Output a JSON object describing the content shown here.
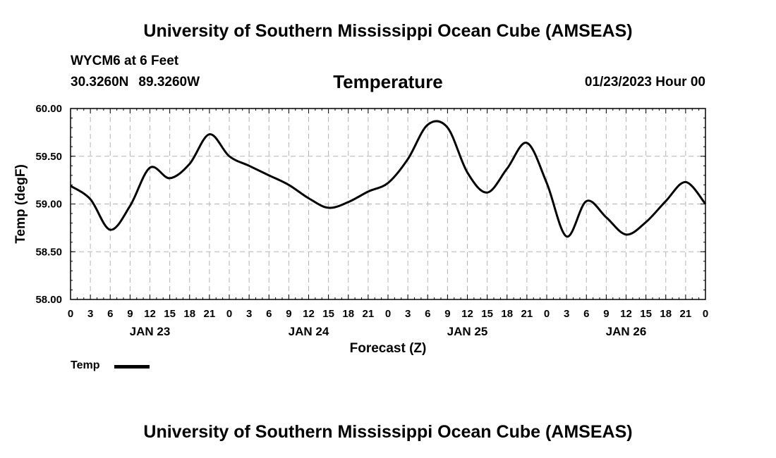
{
  "header": {
    "title": "University of Southern Mississippi Ocean Cube (AMSEAS)",
    "station": "WYCM6 at 6 Feet",
    "lat": "30.3260N",
    "lon": "89.3260W",
    "date": "01/23/2023 Hour 00"
  },
  "footer": {
    "title": "University of Southern Mississippi Ocean Cube (AMSEAS)"
  },
  "legend": {
    "label": "Temp",
    "color": "#000000"
  },
  "chart_data": {
    "type": "line",
    "title": "Temperature",
    "xlabel": "Forecast (Z)",
    "ylabel": "Temp (degF)",
    "ylim": [
      58.0,
      60.0
    ],
    "xlim": [
      0,
      96
    ],
    "y_ticks": [
      58.0,
      58.5,
      59.0,
      59.5,
      60.0
    ],
    "y_tick_labels": [
      "58.00",
      "58.50",
      "59.00",
      "59.50",
      "60.00"
    ],
    "x_ticks": [
      0,
      3,
      6,
      9,
      12,
      15,
      18,
      21,
      24,
      27,
      30,
      33,
      36,
      39,
      42,
      45,
      48,
      51,
      54,
      57,
      60,
      63,
      66,
      69,
      72,
      75,
      78,
      81,
      84,
      87,
      90,
      93,
      96
    ],
    "x_tick_labels": [
      "0",
      "3",
      "6",
      "9",
      "12",
      "15",
      "18",
      "21",
      "0",
      "3",
      "6",
      "9",
      "12",
      "15",
      "18",
      "21",
      "0",
      "3",
      "6",
      "9",
      "12",
      "15",
      "18",
      "21",
      "0",
      "3",
      "6",
      "9",
      "12",
      "15",
      "18",
      "21",
      "0"
    ],
    "day_labels": [
      {
        "label": "JAN 23",
        "hour": 12
      },
      {
        "label": "JAN 24",
        "hour": 36
      },
      {
        "label": "JAN 25",
        "hour": 60
      },
      {
        "label": "JAN 26",
        "hour": 84
      }
    ],
    "grid": true,
    "series": [
      {
        "name": "Temp",
        "x": [
          0,
          3,
          6,
          9,
          12,
          15,
          18,
          21,
          24,
          27,
          30,
          33,
          36,
          39,
          42,
          45,
          48,
          51,
          54,
          57,
          60,
          63,
          66,
          69,
          72,
          75,
          78,
          81,
          84,
          87,
          90,
          93,
          96
        ],
        "values": [
          59.19,
          59.05,
          58.73,
          58.98,
          59.38,
          59.27,
          59.42,
          59.73,
          59.5,
          59.4,
          59.3,
          59.2,
          59.06,
          58.96,
          59.02,
          59.13,
          59.22,
          59.47,
          59.83,
          59.8,
          59.33,
          59.12,
          59.37,
          59.64,
          59.22,
          58.66,
          59.03,
          58.86,
          58.68,
          58.81,
          59.03,
          59.23,
          59.0
        ]
      }
    ]
  }
}
